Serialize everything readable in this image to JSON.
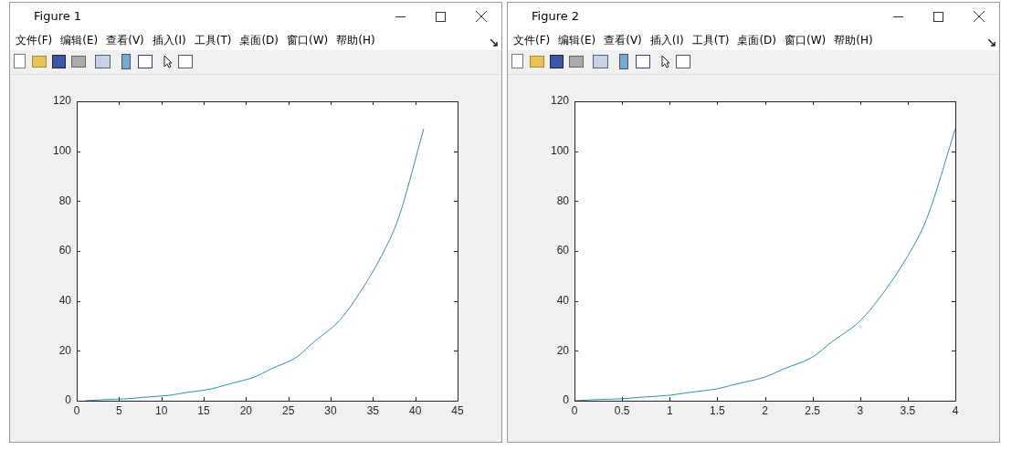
{
  "chart_data": [
    {
      "type": "line",
      "title": "Figure 1",
      "annotations": [
        "文件(F)",
        "编辑(E)",
        "查看(V)",
        "插入(I)",
        "工具(T)",
        "桌面(D)",
        "窗口(W)",
        "帮助(H)"
      ],
      "x": [
        1,
        3,
        6,
        8,
        11,
        13,
        16,
        18,
        21,
        23,
        26,
        28,
        31,
        33,
        36,
        38,
        41
      ],
      "series": [
        {
          "color": "#2e8fb0",
          "values": [
            0,
            0.4,
            0.8,
            1.4,
            2.2,
            3.3,
            4.8,
            6.7,
            9.5,
            12.8,
            17.5,
            23.5,
            32,
            41,
            58,
            73,
            109
          ]
        }
      ],
      "xlim": [
        0,
        45
      ],
      "xticks": [
        0,
        5,
        10,
        15,
        20,
        25,
        30,
        35,
        40,
        45
      ],
      "ylim": [
        0,
        120
      ],
      "yticks": [
        0,
        20,
        40,
        60,
        80,
        100,
        120
      ]
    },
    {
      "type": "line",
      "title": "Figure 2",
      "annotations": [
        "文件(F)",
        "编辑(E)",
        "查看(V)",
        "插入(I)",
        "工具(T)",
        "桌面(D)",
        "窗口(W)",
        "帮助(H)"
      ],
      "x": [
        0,
        0.2,
        0.5,
        0.7,
        1,
        1.2,
        1.5,
        1.7,
        2,
        2.2,
        2.5,
        2.7,
        3,
        3.2,
        3.5,
        3.7,
        4
      ],
      "series": [
        {
          "color": "#2e8fb0",
          "values": [
            0,
            0.4,
            0.8,
            1.4,
            2.2,
            3.3,
            4.8,
            6.7,
            9.5,
            12.8,
            17.5,
            23.5,
            32,
            41,
            58,
            73,
            109
          ]
        }
      ],
      "xlim": [
        0,
        4
      ],
      "xticks": [
        0,
        0.5,
        1,
        1.5,
        2,
        2.5,
        3,
        3.5,
        4
      ],
      "ylim": [
        0,
        120
      ],
      "yticks": [
        0,
        20,
        40,
        60,
        80,
        100,
        120
      ]
    }
  ]
}
